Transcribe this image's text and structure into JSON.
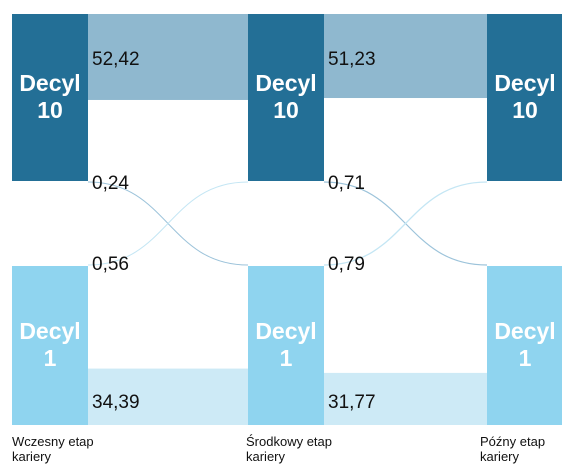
{
  "chart_data": {
    "type": "sankey",
    "nodes": [
      "Decyl 10",
      "Decyl 1"
    ],
    "stages": [
      "Wczesny etap kariery",
      "Środkowy etap kariery",
      "Późny etap kariery"
    ],
    "node_colors": [
      "#236f96",
      "#8fd4ef"
    ],
    "band_colors": [
      "#8fb8cf",
      "#cdeaf6"
    ],
    "transitions": [
      {
        "values": [
          52.42,
          0.24,
          0.56,
          34.39
        ],
        "value_labels": [
          "52,42",
          "0,24",
          "0,56",
          "34,39"
        ]
      },
      {
        "values": [
          51.23,
          0.71,
          0.79,
          31.77
        ],
        "value_labels": [
          "51,23",
          "0,71",
          "0,79",
          "31,77"
        ]
      }
    ]
  }
}
